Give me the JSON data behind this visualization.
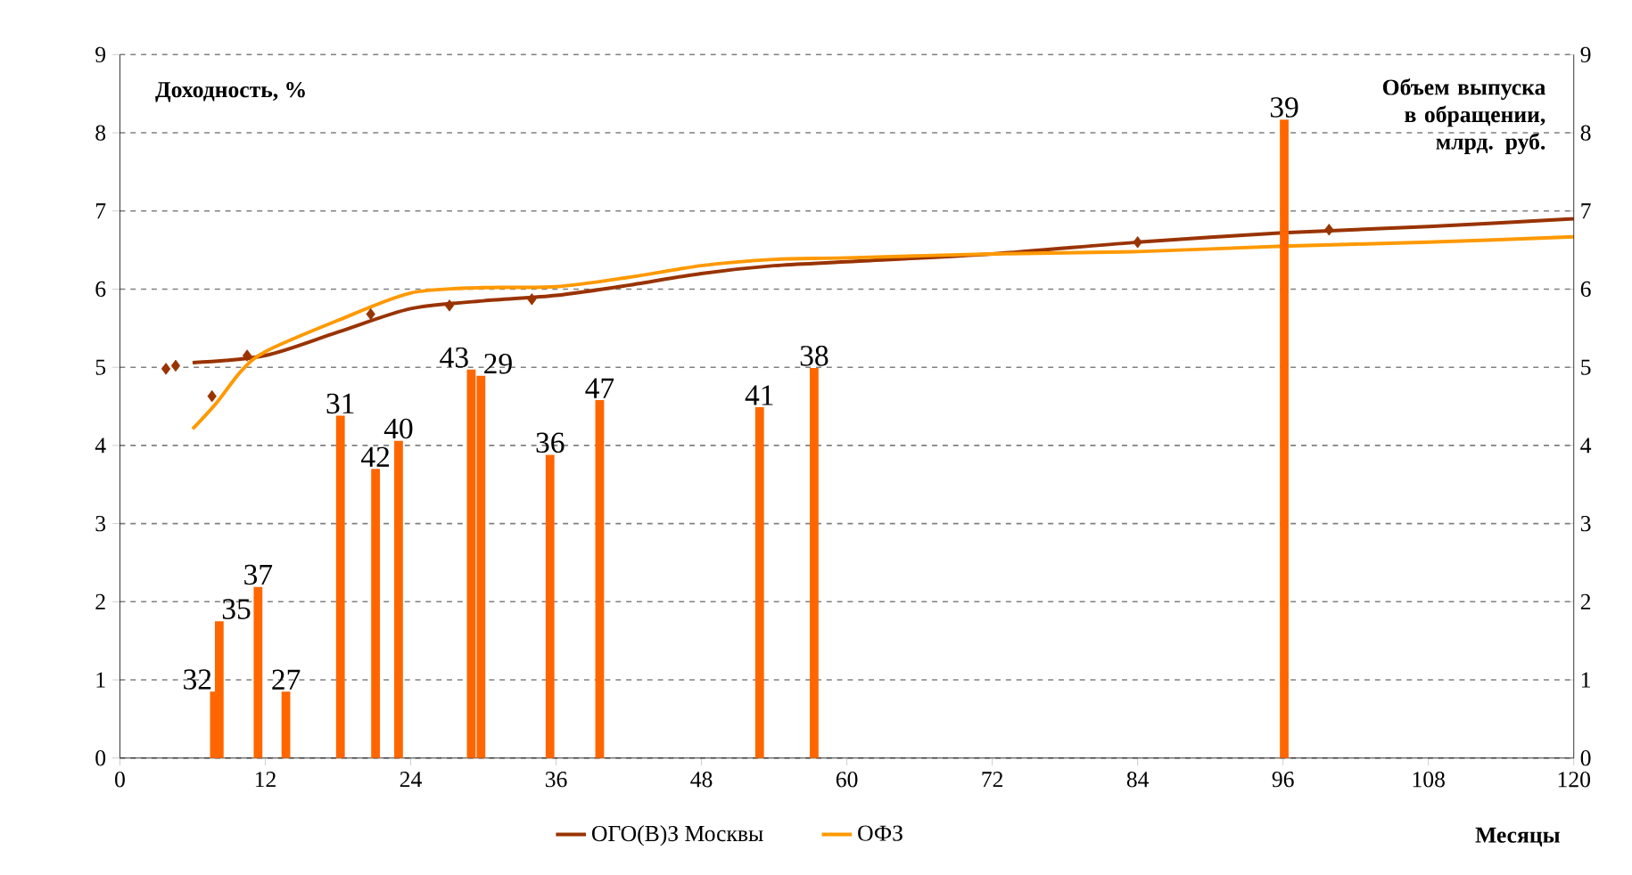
{
  "chart_data": {
    "type": "bar",
    "xlabel": "Месяцы",
    "ylabel": "Доходность, %",
    "y2label": "Объем выпуска в обращении, млрд. руб.",
    "xlim": [
      0,
      120
    ],
    "xticks": [
      0,
      12,
      24,
      36,
      48,
      60,
      72,
      84,
      96,
      108,
      120
    ],
    "ylim": [
      0,
      9
    ],
    "yticks": [
      0,
      1,
      2,
      3,
      4,
      5,
      6,
      7,
      8,
      9
    ],
    "y2lim": [
      0,
      9
    ],
    "y2ticks": [
      0,
      1,
      2,
      3,
      4,
      5,
      6,
      7,
      8,
      9
    ],
    "grid": "y",
    "legend": "bottom",
    "series": [
      {
        "axis": "y2",
        "color": "#ff6600",
        "x": [
          7.8,
          8.2,
          11.4,
          13.7,
          18.2,
          21.1,
          23.0,
          29.0,
          29.8,
          35.5,
          39.6,
          52.8,
          57.3,
          96.1
        ],
        "values": [
          0.85,
          1.75,
          2.19,
          0.85,
          4.38,
          3.7,
          4.06,
          4.97,
          4.89,
          3.88,
          4.58,
          4.49,
          4.99,
          8.17
        ]
      },
      {
        "type": "line",
        "name": "ОГО(В)З Москвы",
        "color": "#993300",
        "x": [
          6,
          12,
          18,
          24,
          30,
          36,
          42,
          48,
          54,
          60,
          72,
          84,
          96,
          108,
          120
        ],
        "values": [
          5.06,
          5.15,
          5.45,
          5.75,
          5.85,
          5.92,
          6.05,
          6.2,
          6.3,
          6.35,
          6.45,
          6.6,
          6.72,
          6.8,
          6.9
        ]
      },
      {
        "type": "scatter",
        "marker": "diamond",
        "color": "#993300",
        "x": [
          3.8,
          4.6,
          7.6,
          10.5,
          20.7,
          27.2,
          34.0,
          84.0,
          99.8
        ],
        "values": [
          4.98,
          5.02,
          4.63,
          5.15,
          5.68,
          5.79,
          5.87,
          6.6,
          6.76
        ]
      },
      {
        "type": "line",
        "name": "ОФЗ",
        "color": "#ff9900",
        "x": [
          6,
          8,
          10,
          12,
          18,
          24,
          30,
          36,
          42,
          48,
          54,
          60,
          72,
          84,
          96,
          108,
          120
        ],
        "values": [
          4.21,
          4.55,
          4.95,
          5.2,
          5.6,
          5.95,
          6.02,
          6.03,
          6.15,
          6.3,
          6.38,
          6.4,
          6.45,
          6.48,
          6.55,
          6.6,
          6.67
        ]
      }
    ],
    "annotations": [
      "32",
      "35",
      "37",
      "27",
      "31",
      "42",
      "40",
      "43",
      "29",
      "36",
      "47",
      "41",
      "38",
      "39"
    ]
  }
}
